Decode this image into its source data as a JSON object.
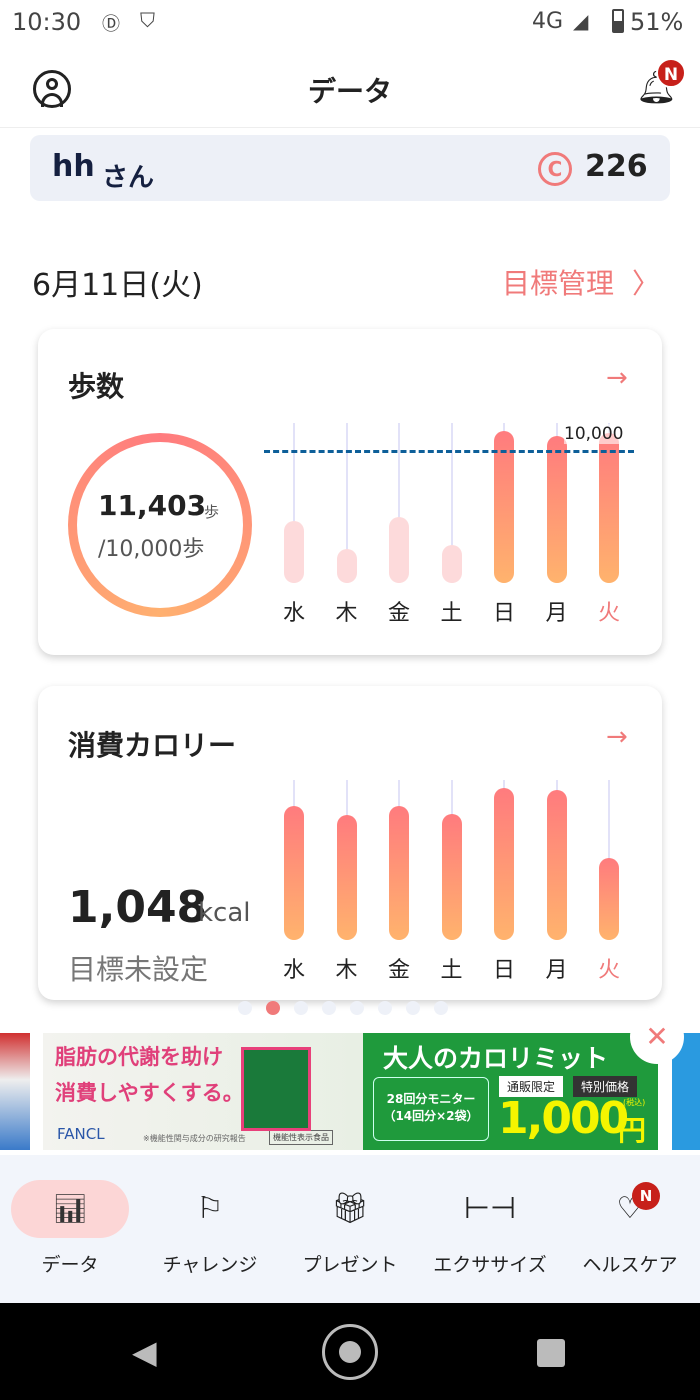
{
  "status": {
    "time": "10:30",
    "network": "4G",
    "battery": "51%"
  },
  "header": {
    "title": "データ",
    "badge": "N"
  },
  "user": {
    "name": "hh",
    "suffix": "さん",
    "points": "226",
    "coin_icon": "C"
  },
  "date": {
    "label": "6月11日(火)",
    "goal_link": "目標管理"
  },
  "colors": {
    "accent": "#f07a7a",
    "target_line": "#0d5f99",
    "inactive_bar": "#fddadb"
  },
  "days": [
    "水",
    "木",
    "金",
    "土",
    "日",
    "月",
    "火"
  ],
  "steps": {
    "title": "歩数",
    "value": "11,403",
    "unit": "歩",
    "goal": "/10,000歩",
    "target_label": "10,000",
    "progress": 1.0,
    "bar_levels": [
      0.39,
      0.21,
      0.41,
      0.24,
      0.95,
      0.92,
      0.94
    ],
    "target_level": 0.83,
    "achieved": [
      false,
      false,
      false,
      false,
      true,
      true,
      true
    ]
  },
  "calories": {
    "title": "消費カロリー",
    "value": "1,048",
    "unit": "kcal",
    "goal": "目標未設定",
    "bar_levels": [
      0.84,
      0.78,
      0.84,
      0.79,
      0.95,
      0.94,
      0.51
    ]
  },
  "pager": {
    "count": 8,
    "active": 1
  },
  "ad": {
    "line1": "脂肪の代謝を助け",
    "line2": "消費しやすくする。",
    "brand": "FANCL",
    "note": "※機能性関与成分の研究報告",
    "badge": "機能性表示食品",
    "product": "大人のカロリミット",
    "monitor1": "28回分モニター",
    "monitor2": "（14回分×2袋）",
    "tag1": "通販限定",
    "tag2": "特別価格",
    "price": "1,000",
    "yen": "円",
    "tax": "(税込)"
  },
  "nav": [
    {
      "label": "データ",
      "active": true
    },
    {
      "label": "チャレンジ"
    },
    {
      "label": "プレゼント"
    },
    {
      "label": "エクササイズ"
    },
    {
      "label": "ヘルスケア",
      "badge": "N"
    }
  ]
}
